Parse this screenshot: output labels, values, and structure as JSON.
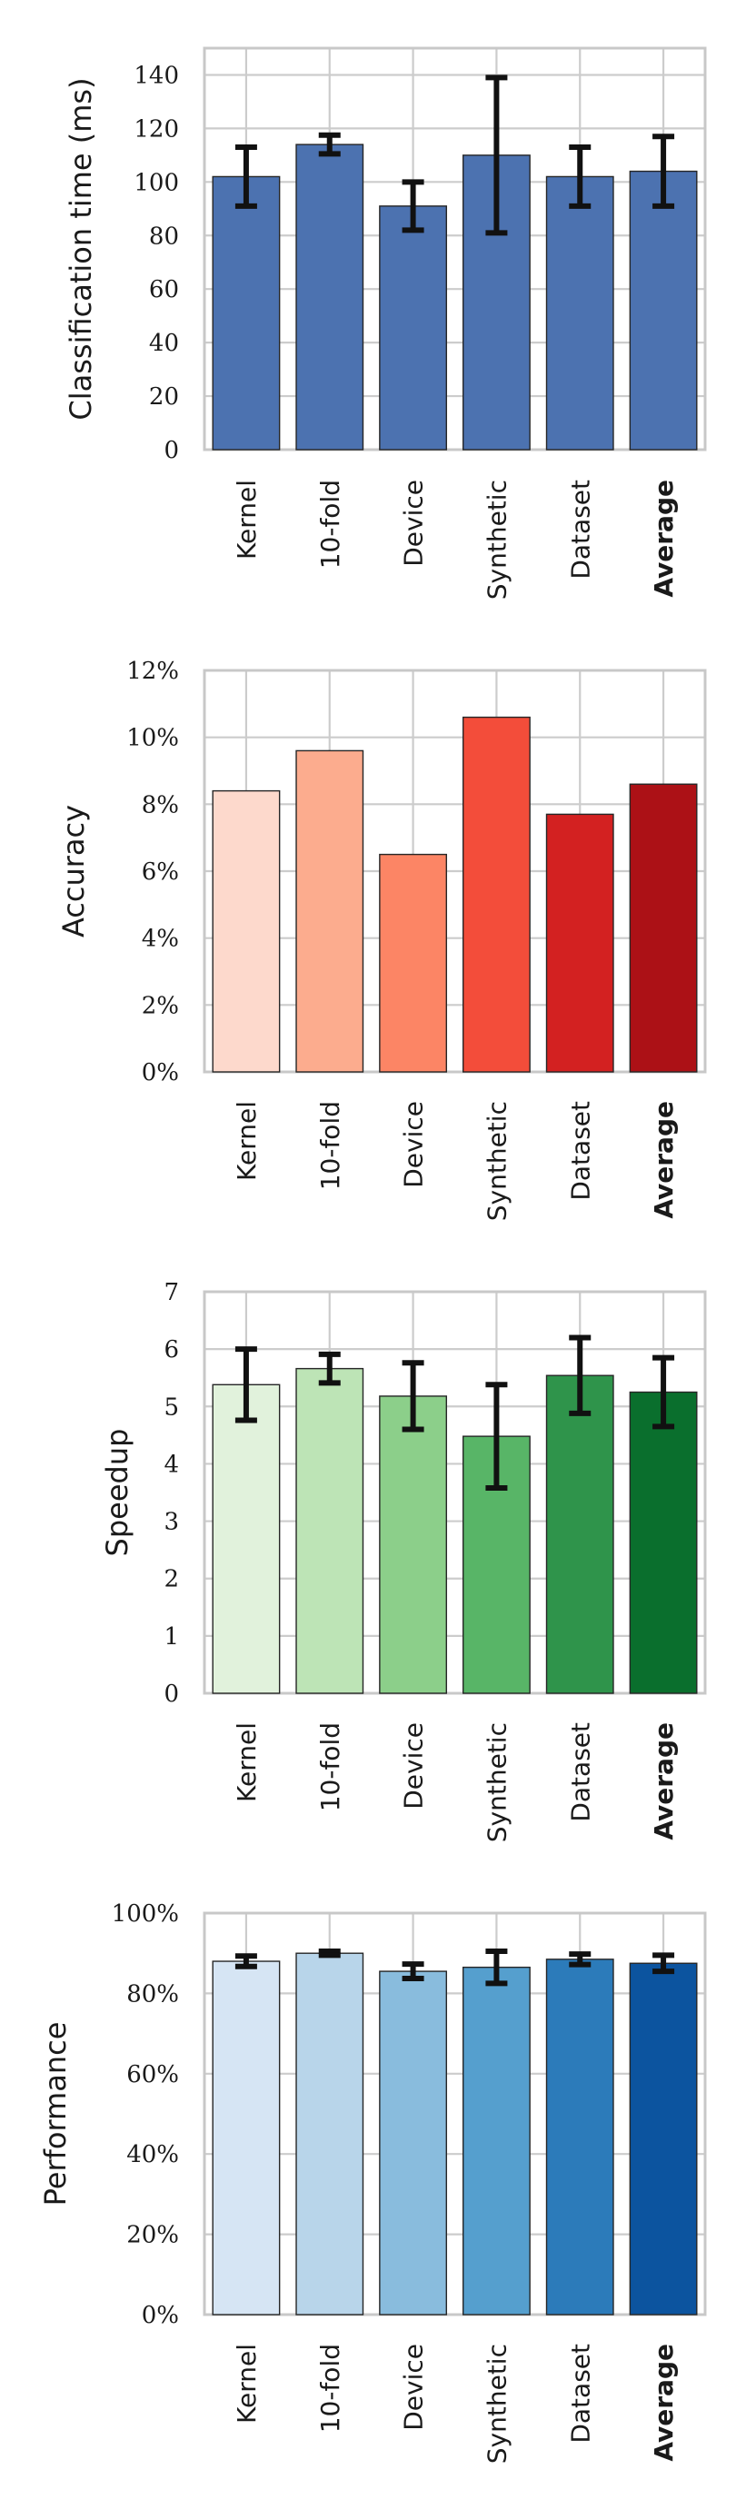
{
  "chart_data": [
    {
      "type": "bar",
      "ylabel": "Classification time (ms)",
      "categories": [
        "Kernel",
        "10-fold",
        "Device",
        "Synthetic",
        "Dataset",
        "Average"
      ],
      "values": [
        102,
        114,
        91,
        110,
        102,
        104
      ],
      "errors": [
        11,
        3.5,
        9,
        29,
        11,
        13
      ],
      "ylim": [
        0,
        150
      ],
      "yticks": [
        0,
        20,
        40,
        60,
        80,
        100,
        120,
        140
      ],
      "yticklabels": [
        "0",
        "20",
        "40",
        "60",
        "80",
        "100",
        "120",
        "140"
      ],
      "colors": [
        "#4c72b0",
        "#4c72b0",
        "#4c72b0",
        "#4c72b0",
        "#4c72b0",
        "#4c72b0"
      ],
      "grid": true
    },
    {
      "type": "bar",
      "ylabel": "Accuracy",
      "categories": [
        "Kernel",
        "10-fold",
        "Device",
        "Synthetic",
        "Dataset",
        "Average"
      ],
      "values": [
        8.4,
        9.6,
        6.5,
        10.6,
        7.7,
        8.6
      ],
      "errors": null,
      "ylim": [
        0,
        12
      ],
      "yticks": [
        0,
        2,
        4,
        6,
        8,
        10,
        12
      ],
      "yticklabels": [
        "0%",
        "2%",
        "4%",
        "6%",
        "8%",
        "10%",
        "12%"
      ],
      "colors": [
        "#fdd9cc",
        "#fcac8e",
        "#fc8565",
        "#f34d3a",
        "#d32121",
        "#ac1116"
      ],
      "grid": true
    },
    {
      "type": "bar",
      "ylabel": "Speedup",
      "categories": [
        "Kernel",
        "10-fold",
        "Device",
        "Synthetic",
        "Dataset",
        "Average"
      ],
      "values": [
        5.38,
        5.66,
        5.18,
        4.48,
        5.54,
        5.25
      ],
      "errors": [
        0.62,
        0.25,
        0.58,
        0.9,
        0.66,
        0.6
      ],
      "ylim": [
        0,
        7
      ],
      "yticks": [
        0,
        1,
        2,
        3,
        4,
        5,
        6,
        7
      ],
      "yticklabels": [
        "0",
        "1",
        "2",
        "3",
        "4",
        "5",
        "6",
        "7"
      ],
      "colors": [
        "#e1f2dc",
        "#bde4b6",
        "#8ccf8a",
        "#58b567",
        "#2f944b",
        "#0a6f2d"
      ],
      "grid": true
    },
    {
      "type": "bar",
      "ylabel": "Performance",
      "categories": [
        "Kernel",
        "10-fold",
        "Device",
        "Synthetic",
        "Dataset",
        "Average"
      ],
      "values": [
        88,
        90,
        85.5,
        86.5,
        88.5,
        87.5
      ],
      "errors": [
        1.3,
        0.5,
        1.8,
        4,
        1.3,
        2
      ],
      "ylim": [
        0,
        100
      ],
      "yticks": [
        0,
        20,
        40,
        60,
        80,
        100
      ],
      "yticklabels": [
        "0%",
        "20%",
        "40%",
        "60%",
        "80%",
        "100%"
      ],
      "colors": [
        "#d6e5f4",
        "#b8d5ea",
        "#89bcdd",
        "#559fce",
        "#2c7bba",
        "#0c549f"
      ],
      "grid": true
    }
  ]
}
